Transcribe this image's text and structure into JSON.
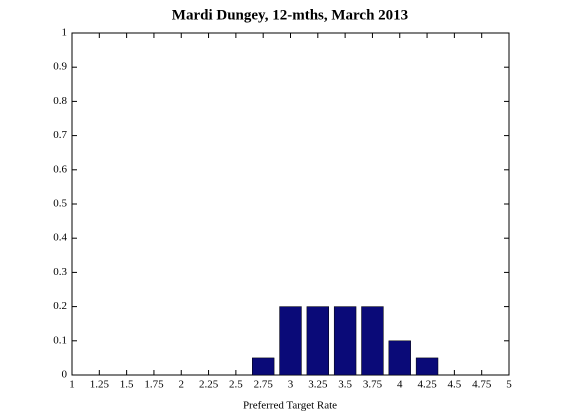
{
  "chart_data": {
    "type": "bar",
    "title": "Mardi Dungey, 12-mths, March 2013",
    "x_label": "Preferred Target Rate",
    "x": [
      2.75,
      3,
      3.25,
      3.5,
      3.75,
      4,
      4.25
    ],
    "values": [
      0.05,
      0.2,
      0.2,
      0.2,
      0.2,
      0.1,
      0.05
    ],
    "color": "#0a0a78",
    "xlim": [
      1,
      5
    ],
    "xticks": [
      1,
      1.25,
      1.5,
      1.75,
      2,
      2.25,
      2.5,
      2.75,
      3,
      3.25,
      3.5,
      3.75,
      4,
      4.25,
      4.5,
      4.75,
      5
    ],
    "ylim": [
      0,
      1
    ],
    "yticks": [
      0,
      0.1,
      0.2,
      0.3,
      0.4,
      0.5,
      0.6,
      0.7,
      0.8,
      0.9,
      1
    ],
    "grid": false
  }
}
